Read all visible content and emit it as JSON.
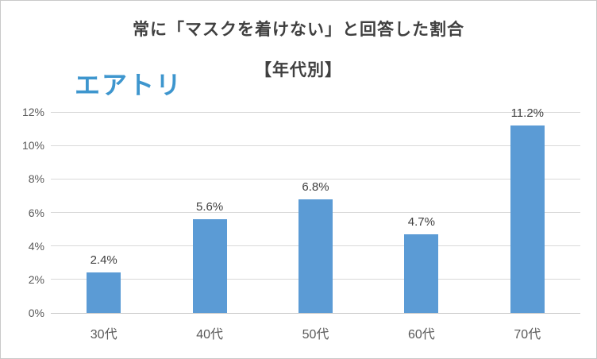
{
  "frame": {
    "border_color": "#c9c9c9",
    "background": "#ffffff"
  },
  "header": {
    "title": "常に「マスクを着けない」と回答した割合",
    "subtitle": "【年代別】",
    "logo_text": "エアトリ",
    "logo_color": "#3e96ce"
  },
  "chart_data": {
    "type": "bar",
    "title": "常に「マスクを着けない」と回答した割合",
    "subtitle": "【年代別】",
    "categories": [
      "30代",
      "40代",
      "50代",
      "60代",
      "70代"
    ],
    "values": [
      2.4,
      5.6,
      6.8,
      4.7,
      11.2
    ],
    "data_labels": [
      "2.4%",
      "5.6%",
      "6.8%",
      "4.7%",
      "11.2%"
    ],
    "xlabel": "",
    "ylabel": "",
    "ylim": [
      0,
      12
    ],
    "ytick_step": 2,
    "ytick_labels": [
      "0%",
      "2%",
      "4%",
      "6%",
      "8%",
      "10%",
      "12%"
    ],
    "grid": true,
    "legend": false,
    "bar_color": "#5b9bd5",
    "gridline_color": "#d9d9d9",
    "axis_line_color": "#c9c9c9",
    "tick_label_color": "#595959",
    "data_label_color": "#404040"
  }
}
